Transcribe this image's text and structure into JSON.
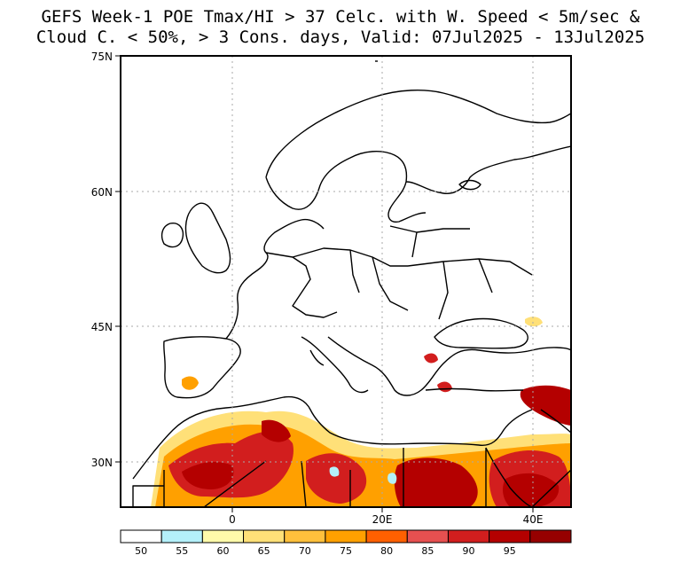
{
  "title": {
    "line1": "GEFS Week-1 POE Tmax/HI > 37 Celc. with W. Speed < 5m/sec &",
    "line2": "Cloud C. < 50%, > 3 Cons. days, Valid: 07Jul2025 - 13Jul2025"
  },
  "axes": {
    "lat_labels": [
      "75N",
      "60N",
      "45N",
      "30N"
    ],
    "lon_labels": [
      "0",
      "20E",
      "40E"
    ]
  },
  "colorbar": {
    "labels": [
      "50",
      "55",
      "60",
      "65",
      "70",
      "75",
      "80",
      "85",
      "90",
      "95"
    ],
    "colors": [
      "#ffffff",
      "#b4f0fa",
      "#fffaaa",
      "#ffe078",
      "#ffc03c",
      "#ffa000",
      "#ff6000",
      "#e65050",
      "#d21e1e",
      "#b40000",
      "#960000"
    ]
  },
  "colors": {
    "coast": "#000000",
    "grid": "#aaaaaa"
  }
}
